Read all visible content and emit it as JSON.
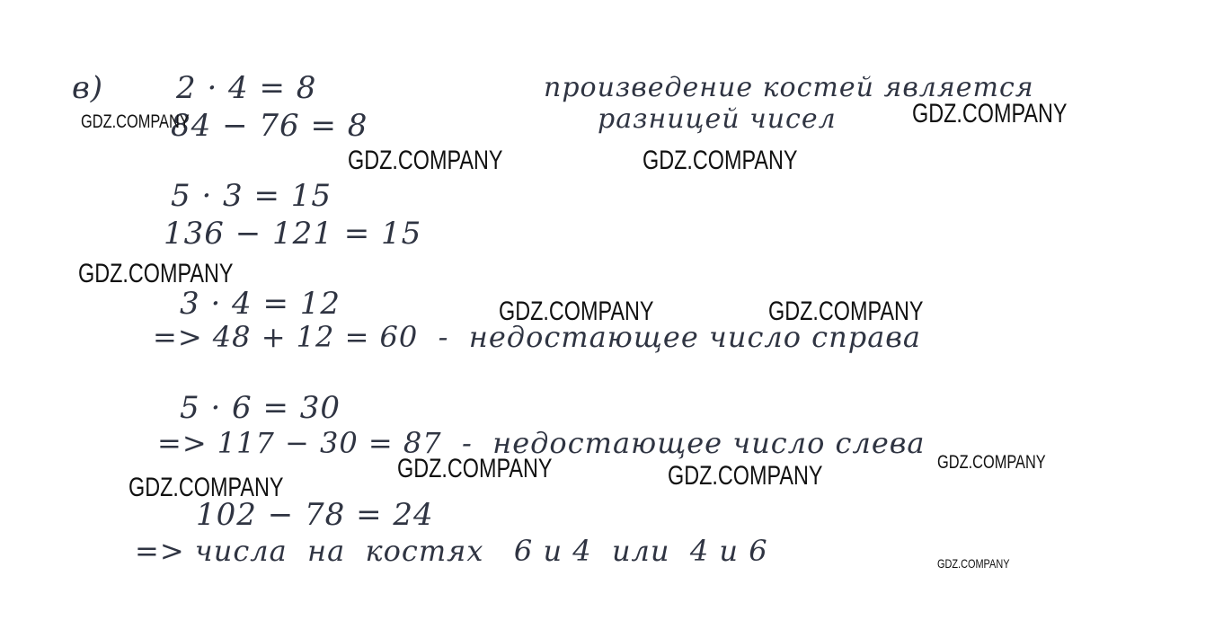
{
  "lines": {
    "label": "в)",
    "l1": "2 · 4 = 8",
    "l2": "84 − 76 = 8",
    "note1": "произведение костей является",
    "note2": "разницей чисел",
    "l3": "5 · 3 = 15",
    "l4": "136 − 121 = 15",
    "l5": "3 · 4 = 12",
    "l6": "=> 48 + 12 = 60  -  недостающее число справа",
    "l7": "5 · 6 = 30",
    "l8": "=> 117 − 30 = 87  -  недостающее число слева",
    "l9": "102 − 78 = 24",
    "l10": "=> числа  на  костях   6 и 4  или  4 и 6"
  },
  "watermark": "GDZ.COMPANY"
}
